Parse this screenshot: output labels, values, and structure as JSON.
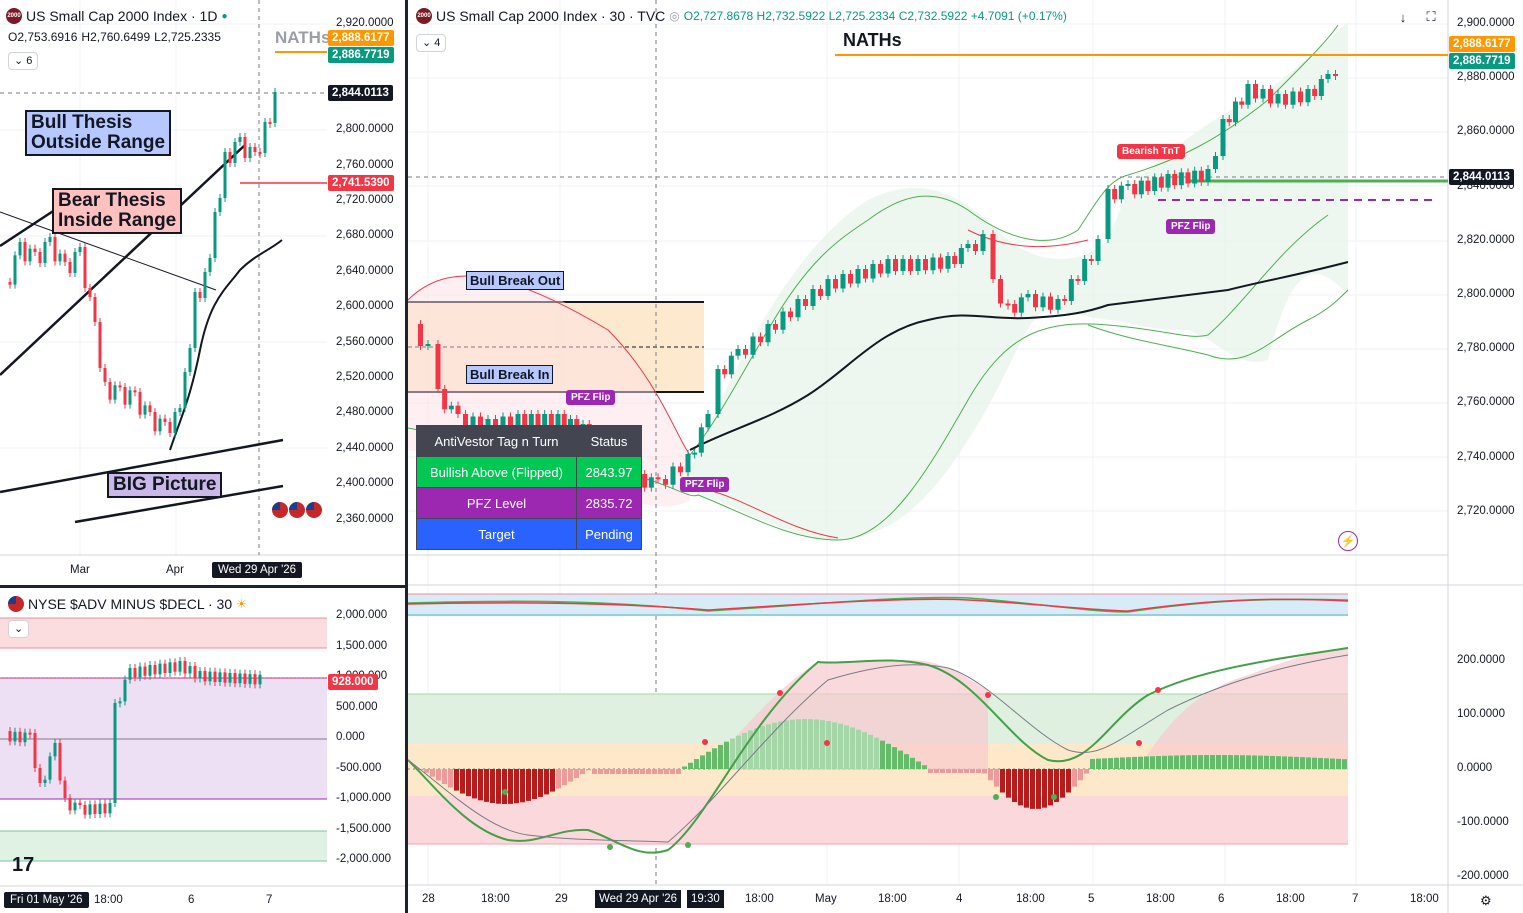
{
  "left_chart": {
    "symbol": "US Small Cap 2000 Index · 1D",
    "icon": "2000",
    "ohlc": {
      "o": "O2,753.6916",
      "h": "H2,760.6499",
      "l": "L2,725.2335"
    },
    "collapse": "6",
    "naths_label": "NATHs",
    "annotations": {
      "bull": "Bull Thesis\nOutside Range",
      "bear": "Bear Thesis\nInside Range",
      "big": "BIG Picture"
    },
    "price_axis": [
      "2,920.0000",
      "2,880.0000",
      "2,840.0000",
      "2,800.0000",
      "2,760.0000",
      "2,720.0000",
      "2,680.0000",
      "2,640.0000",
      "2,600.0000",
      "2,560.0000",
      "2,520.0000",
      "2,480.0000",
      "2,440.0000",
      "2,400.0000",
      "2,360.0000"
    ],
    "tags": {
      "orange": "2,888.6177",
      "green": "2,886.7719",
      "dark": "2,844.0113",
      "red": "2,741.5390"
    },
    "time_axis": {
      "mar": "Mar",
      "apr": "Apr",
      "cursor": "Wed 29 Apr '26"
    }
  },
  "breadth_chart": {
    "symbol": "NYSE $ADV MINUS $DECL · 30",
    "price_axis": [
      "2,000.000",
      "1,500.000",
      "1,000.000",
      "500.000",
      "0.000",
      "-500.000",
      "-1,000.000",
      "-1,500.000",
      "-2,000.000"
    ],
    "tag": "928.000",
    "time_axis": {
      "cursor": "Fri 01 May '26",
      "t1": "18:00",
      "t2": "6",
      "t3": "7"
    }
  },
  "main_chart": {
    "symbol": "US Small Cap 2000 Index · 30 · TVC",
    "icon": "2000",
    "ohlc": {
      "o": "O2,727.8678",
      "h": "H2,732.5922",
      "l": "L2,725.2334",
      "c": "C2,732.5922",
      "chg": "+4.7091 (+0.17%)"
    },
    "collapse": "4",
    "naths_label": "NATHs",
    "labels": {
      "bull_break_out": "Bull Break Out",
      "bull_break_in": "Bull Break In",
      "pfz1": "PFZ Flip",
      "pfz2": "PFZ Flip",
      "pfz3": "PFZ Flip",
      "bearish_tnt": "Bearish TnT"
    },
    "table": {
      "header": [
        "AntiVestor Tag n Turn",
        "Status"
      ],
      "rows": [
        {
          "label": "Bullish Above (Flipped)",
          "value": "2843.97",
          "color": "#00c853"
        },
        {
          "label": "PFZ Level",
          "value": "2835.72",
          "color": "#9c27b0"
        },
        {
          "label": "Target",
          "value": "Pending",
          "color": "#2962ff"
        }
      ]
    },
    "price_axis": [
      "2,900.0000",
      "2,880.0000",
      "2,860.0000",
      "2,840.0000",
      "2,820.0000",
      "2,800.0000",
      "2,780.0000",
      "2,760.0000",
      "2,740.0000",
      "2,720.0000"
    ],
    "tags": {
      "orange": "2,888.6177",
      "green": "2,886.7719",
      "dark": "2,844.0113"
    },
    "osc_axis": [
      "200.0000",
      "100.0000",
      "0.0000",
      "-100.0000",
      "-200.0000"
    ],
    "time_axis": [
      "28",
      "18:00",
      "29",
      "Wed 29 Apr '26",
      "19:30",
      "18:00",
      "May",
      "18:00",
      "4",
      "18:00",
      "5",
      "18:00",
      "6",
      "18:00",
      "7",
      "18:00"
    ]
  },
  "colors": {
    "up": "#089981",
    "down": "#f23645",
    "orange": "#ff9800",
    "purple": "#9c27b0",
    "black": "#131722"
  }
}
